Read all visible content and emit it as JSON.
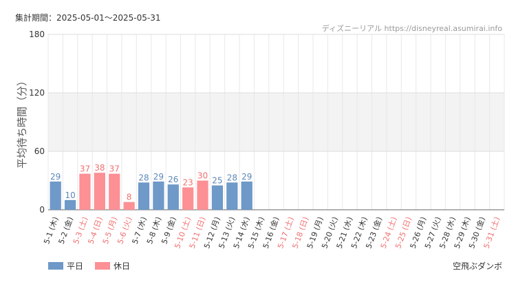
{
  "header": {
    "period": "集計期間：2025-05-01〜2025-05-31",
    "source": "ディズニーリアル https://disneyreal.asumirai.info"
  },
  "colors": {
    "weekday": "#6e99c8",
    "holiday": "#fc9095",
    "holiday_text": "#f07070",
    "weekday_text": "#5b86b8"
  },
  "legend": {
    "weekday_label": "平日",
    "holiday_label": "休日"
  },
  "attraction": "空飛ぶダンボ",
  "chart_data": {
    "type": "bar",
    "ylabel": "平均待ち時間（分）",
    "ylim": [
      0,
      180
    ],
    "yticks": [
      0,
      60,
      120,
      180
    ],
    "categories": [
      "5-1 (木)",
      "5-2 (金)",
      "5-3 (土)",
      "5-4 (日)",
      "5-5 (月)",
      "5-6 (火)",
      "5-7 (水)",
      "5-8 (木)",
      "5-9 (金)",
      "5-10 (土)",
      "5-11 (日)",
      "5-12 (月)",
      "5-13 (火)",
      "5-14 (水)",
      "5-15 (木)",
      "5-16 (金)",
      "5-17 (土)",
      "5-18 (日)",
      "5-19 (月)",
      "5-20 (火)",
      "5-21 (水)",
      "5-22 (木)",
      "5-23 (金)",
      "5-24 (土)",
      "5-25 (日)",
      "5-26 (月)",
      "5-27 (火)",
      "5-28 (水)",
      "5-29 (木)",
      "5-30 (金)",
      "5-31 (土)"
    ],
    "values": [
      29,
      10,
      37,
      38,
      37,
      8,
      28,
      29,
      26,
      23,
      30,
      25,
      28,
      29,
      null,
      null,
      null,
      null,
      null,
      null,
      null,
      null,
      null,
      null,
      null,
      null,
      null,
      null,
      null,
      null,
      null
    ],
    "day_type": [
      "weekday",
      "weekday",
      "holiday",
      "holiday",
      "holiday",
      "holiday",
      "weekday",
      "weekday",
      "weekday",
      "holiday",
      "holiday",
      "weekday",
      "weekday",
      "weekday",
      "weekday",
      "weekday",
      "holiday",
      "holiday",
      "weekday",
      "weekday",
      "weekday",
      "weekday",
      "weekday",
      "holiday",
      "holiday",
      "weekday",
      "weekday",
      "weekday",
      "weekday",
      "weekday",
      "holiday"
    ],
    "shaded_band": [
      60,
      120
    ]
  }
}
